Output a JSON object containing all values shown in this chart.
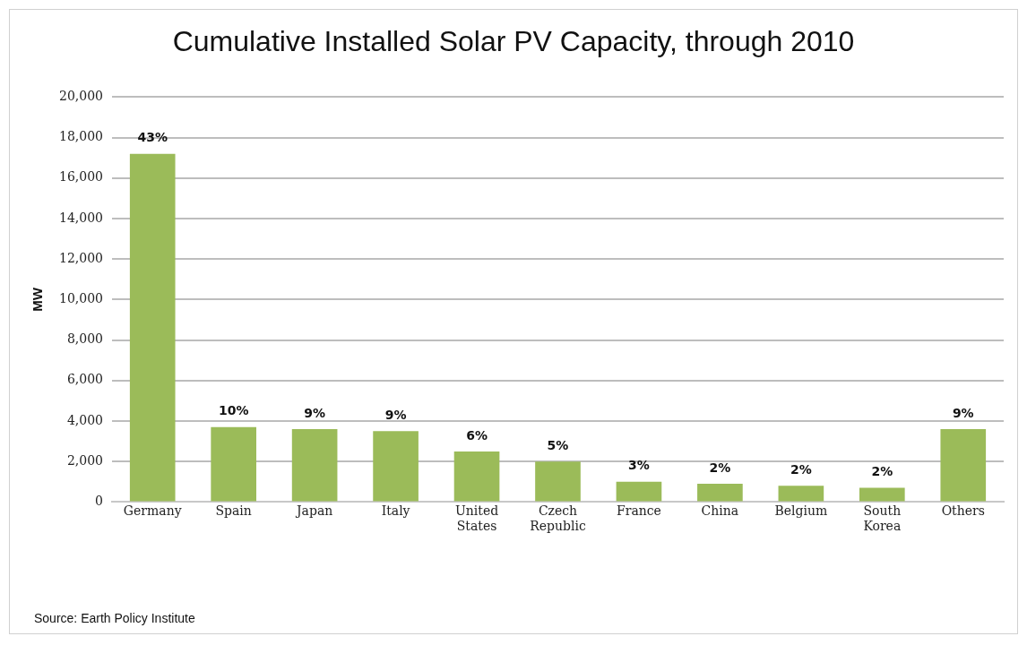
{
  "chart_data": {
    "type": "bar",
    "title": "Cumulative Installed Solar PV Capacity, through 2010",
    "ylabel": "MW",
    "categories": [
      "Germany",
      "Spain",
      "Japan",
      "Italy",
      "United States",
      "Czech Republic",
      "France",
      "China",
      "Belgium",
      "South Korea",
      "Others"
    ],
    "values": [
      17200,
      3700,
      3600,
      3500,
      2500,
      2000,
      1000,
      900,
      800,
      700,
      3600
    ],
    "color": "#9bbb59",
    "ylim": [
      0,
      20000
    ],
    "yticks": [
      0,
      {
        "value": 2000,
        "label": "2,000"
      },
      {
        "value": 4000,
        "label": "4,000"
      },
      {
        "value": 6000,
        "label": "6,000"
      },
      {
        "value": 8000,
        "label": "8,000"
      },
      {
        "value": 10000,
        "label": "10,000"
      },
      {
        "value": 12000,
        "label": "12,000"
      },
      {
        "value": 14000,
        "label": "14,000"
      },
      {
        "value": 16000,
        "label": "16,000"
      },
      {
        "value": 18000,
        "label": "18,000"
      },
      {
        "value": 20000,
        "label": "20,000"
      }
    ],
    "grid": "y",
    "legend": false,
    "annotations": [
      {
        "text": "43%",
        "x": "Germany",
        "y": 17200
      },
      {
        "text": "10%",
        "x": "Spain",
        "y": 3700
      },
      {
        "text": "9%",
        "x": "Japan",
        "y": 3600
      },
      {
        "text": "9%",
        "x": "Italy",
        "y": 3500
      },
      {
        "text": "6%",
        "x": "United States",
        "y": 2500
      },
      {
        "text": "5%",
        "x": "Czech Republic",
        "y": 2000
      },
      {
        "text": "3%",
        "x": "France",
        "y": 1000
      },
      {
        "text": "2%",
        "x": "China",
        "y": 900
      },
      {
        "text": "2%",
        "x": "Belgium",
        "y": 800
      },
      {
        "text": "2%",
        "x": "South Korea",
        "y": 700
      },
      {
        "text": "9%",
        "x": "Others",
        "y": 3600
      },
      "Source: Earth Policy Institute"
    ]
  }
}
